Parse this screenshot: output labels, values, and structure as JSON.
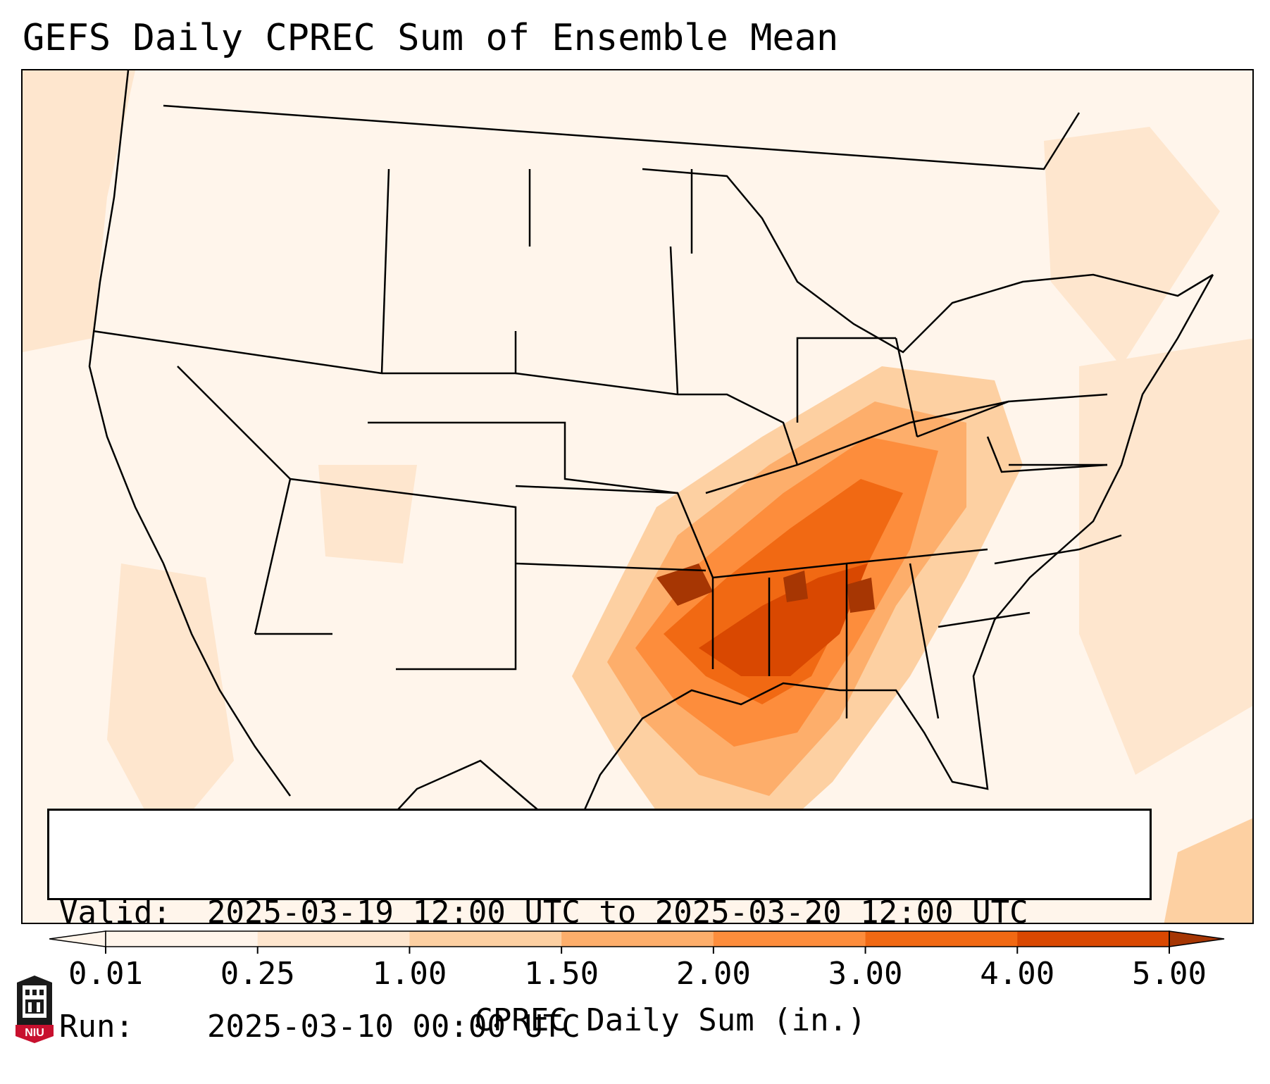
{
  "title": "GEFS Daily CPREC Sum of Ensemble Mean",
  "valid_box": {
    "valid_label": "Valid:",
    "valid_value": "2025-03-19 12:00 UTC to 2025-03-20 12:00 UTC",
    "run_label": "Run:",
    "run_value": "2025-03-10 00:00 UTC"
  },
  "colorbar": {
    "label": "CPREC Daily Sum (in.)",
    "ticks": [
      "0.01",
      "0.25",
      "1.00",
      "1.50",
      "2.00",
      "3.00",
      "4.00",
      "5.00"
    ],
    "colors": [
      "#fff5eb",
      "#fee6ce",
      "#fdd0a2",
      "#fdae6b",
      "#fd8d3c",
      "#f16913",
      "#d94801",
      "#a63603"
    ]
  },
  "logo": {
    "icon": "niu-logo-icon",
    "text": "NIU",
    "color": "#c8102e"
  },
  "map": {
    "region": "CONUS",
    "field": "CPREC daily sum, ensemble mean"
  }
}
